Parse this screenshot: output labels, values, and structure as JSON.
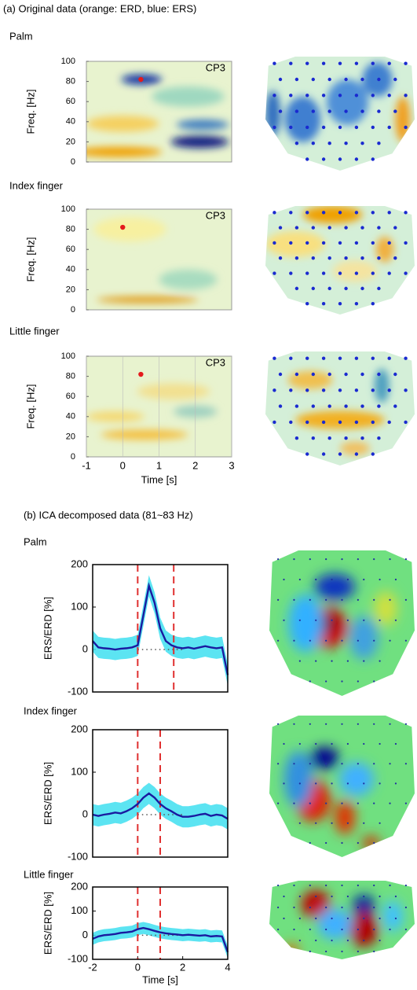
{
  "panel_a_title": "(a) Original data (orange: ERD, blue: ERS)",
  "panel_b_title": "(b) ICA decomposed data (81~83 Hz)",
  "chart_data": [
    {
      "type": "heatmap",
      "label": "Palm",
      "channel": "CP3",
      "ylabel": "Freq. [Hz]",
      "ylim": [
        0,
        100
      ],
      "yticks": [
        0,
        20,
        40,
        60,
        80,
        100
      ],
      "xlim": [
        -1,
        3
      ],
      "marker": {
        "x": 0.5,
        "y": 82
      },
      "marker_color": "#e41a1c"
    },
    {
      "type": "heatmap",
      "label": "Index finger",
      "channel": "CP3",
      "ylabel": "Freq. [Hz]",
      "ylim": [
        0,
        100
      ],
      "yticks": [
        0,
        20,
        40,
        60,
        80,
        100
      ],
      "xlim": [
        -1,
        3
      ],
      "marker": {
        "x": 0,
        "y": 82
      },
      "marker_color": "#e41a1c"
    },
    {
      "type": "heatmap",
      "label": "Little finger",
      "channel": "CP3",
      "ylabel": "Freq. [Hz]",
      "ylim": [
        0,
        100
      ],
      "yticks": [
        0,
        20,
        40,
        60,
        80,
        100
      ],
      "xlim": [
        -1,
        3
      ],
      "xticks": [
        -1,
        0,
        1,
        2,
        3
      ],
      "xlabel": "Time [s]",
      "marker": {
        "x": 0.5,
        "y": 82
      },
      "marker_color": "#e41a1c"
    },
    {
      "type": "line",
      "label": "Palm",
      "ylabel": "ERS/ERD [%]",
      "ylim": [
        -100,
        200
      ],
      "yticks": [
        -100,
        0,
        100,
        200
      ],
      "xlim": [
        -2,
        4
      ],
      "x": [
        -2,
        -1.75,
        -1.5,
        -1.25,
        -1,
        -0.75,
        -0.5,
        -0.25,
        0,
        0.25,
        0.5,
        0.75,
        1,
        1.25,
        1.5,
        1.75,
        2,
        2.25,
        2.5,
        2.75,
        3,
        3.25,
        3.5,
        3.75,
        4
      ],
      "values": [
        20,
        5,
        3,
        2,
        0,
        2,
        3,
        5,
        10,
        80,
        150,
        110,
        50,
        20,
        10,
        5,
        3,
        5,
        2,
        5,
        8,
        5,
        3,
        5,
        -60
      ],
      "spread": 25,
      "color": "#1a1aa0",
      "band_color": "#40dff0",
      "event_lines": [
        0,
        1.6
      ],
      "event_color": "#e03030"
    },
    {
      "type": "line",
      "label": "Index finger",
      "ylabel": "ERS/ERD [%]",
      "ylim": [
        -100,
        200
      ],
      "yticks": [
        -100,
        0,
        100,
        200
      ],
      "xlim": [
        -2,
        4
      ],
      "x": [
        -2,
        -1.75,
        -1.5,
        -1.25,
        -1,
        -0.75,
        -0.5,
        -0.25,
        0,
        0.25,
        0.5,
        0.75,
        1,
        1.25,
        1.5,
        1.75,
        2,
        2.25,
        2.5,
        2.75,
        3,
        3.25,
        3.5,
        3.75,
        4
      ],
      "values": [
        0,
        -3,
        0,
        2,
        5,
        3,
        8,
        15,
        25,
        40,
        50,
        40,
        25,
        15,
        8,
        0,
        -5,
        -5,
        -3,
        0,
        2,
        -3,
        0,
        -2,
        -10
      ],
      "spread": 25,
      "color": "#1a1aa0",
      "band_color": "#40dff0",
      "event_lines": [
        0,
        1
      ],
      "event_color": "#e03030"
    },
    {
      "type": "line",
      "label": "Little finger",
      "ylabel": "ERS/ERD [%]",
      "ylim": [
        -100,
        200
      ],
      "yticks": [
        -100,
        0,
        100,
        200
      ],
      "xlim": [
        -2,
        4
      ],
      "xticks": [
        -2,
        0,
        2,
        4
      ],
      "xlabel": "Time [s]",
      "x": [
        -2,
        -1.75,
        -1.5,
        -1.25,
        -1,
        -0.75,
        -0.5,
        -0.25,
        0,
        0.25,
        0.5,
        0.75,
        1,
        1.25,
        1.5,
        1.75,
        2,
        2.25,
        2.5,
        2.75,
        3,
        3.25,
        3.5,
        3.75,
        4
      ],
      "values": [
        -15,
        -5,
        0,
        2,
        5,
        10,
        12,
        15,
        25,
        30,
        25,
        18,
        12,
        8,
        5,
        3,
        0,
        2,
        0,
        -2,
        0,
        -5,
        -3,
        -5,
        -70
      ],
      "spread": 25,
      "color": "#1a1aa0",
      "band_color": "#40dff0",
      "event_lines": [
        0,
        1
      ],
      "event_color": "#e03030"
    }
  ]
}
